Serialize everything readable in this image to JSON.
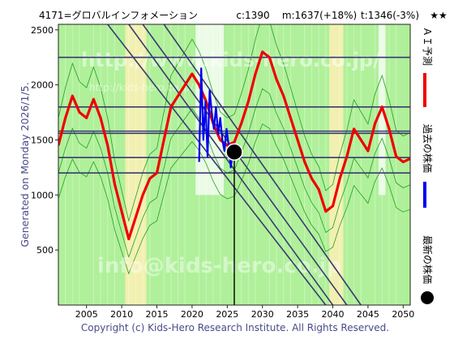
{
  "header": {
    "ticker": "4171=グロバルインフォメーション",
    "current": "c:1390",
    "mean": "m:1637(+18%)",
    "target": "t:1346(-3%)",
    "stars": "★★"
  },
  "side_label": "Generated on Monday 2026/1/5.",
  "watermark_top": "http://www.kids-hero.co.jp/",
  "watermark_mid": "http://kids-hero.co.jp/...",
  "watermark_bottom": "info@kids-hero.co.jp",
  "footer": "Copyright (c) Kids-Hero Research Institute. All Rights Reserved.",
  "legend": {
    "ai_forecast": "ＡＩ予測",
    "past_price": "過去の株価",
    "latest_price": "最新の株価"
  },
  "colors": {
    "forecast": "#ee0000",
    "past": "#0000ee",
    "band_green": "#b0f09a",
    "band_yellow": "#f2f0b0",
    "band_white": "#ffffff",
    "thin_green": "#20a020",
    "lines": "#3a3a72"
  },
  "chart_data": {
    "type": "line",
    "xlim": [
      2001,
      2051
    ],
    "ylim": [
      0,
      2550
    ],
    "x_ticks": [
      2005,
      2010,
      2015,
      2020,
      2025,
      2030,
      2035,
      2040,
      2045,
      2050
    ],
    "y_ticks": [
      500,
      1000,
      1500,
      2000,
      2500
    ],
    "horizontal_lines": [
      2250,
      1800,
      1580,
      1560,
      1340,
      1200
    ],
    "diagonal_lines": [
      {
        "from": [
          2008,
          2550
        ],
        "to": [
          2039,
          0
        ]
      },
      {
        "from": [
          2011,
          2550
        ],
        "to": [
          2040,
          0
        ]
      },
      {
        "from": [
          2013,
          2550
        ],
        "to": [
          2042,
          0
        ]
      },
      {
        "from": [
          2016,
          2550
        ],
        "to": [
          2044,
          0
        ]
      }
    ],
    "latest_marker": {
      "x": 2026,
      "y": 1390
    },
    "series": [
      {
        "name": "ＡＩ予測",
        "x": [
          2001,
          2002,
          2003,
          2004,
          2005,
          2006,
          2007,
          2008,
          2009,
          2010,
          2011,
          2012,
          2013,
          2014,
          2015,
          2016,
          2017,
          2018,
          2019,
          2020,
          2021,
          2022,
          2023,
          2024,
          2025,
          2026,
          2027,
          2028,
          2029,
          2030,
          2031,
          2032,
          2033,
          2034,
          2035,
          2036,
          2037,
          2038,
          2039,
          2040,
          2041,
          2042,
          2043,
          2044,
          2045,
          2046,
          2047,
          2048,
          2049,
          2050,
          2051
        ],
        "y": [
          1450,
          1700,
          1900,
          1750,
          1700,
          1870,
          1700,
          1450,
          1100,
          850,
          600,
          800,
          1000,
          1150,
          1200,
          1500,
          1800,
          1900,
          2000,
          2100,
          2000,
          1850,
          1650,
          1500,
          1450,
          1480,
          1650,
          1850,
          2100,
          2300,
          2250,
          2050,
          1900,
          1700,
          1500,
          1300,
          1150,
          1050,
          850,
          900,
          1150,
          1350,
          1600,
          1500,
          1400,
          1650,
          1800,
          1600,
          1350,
          1300,
          1330
        ]
      },
      {
        "name": "過去の株価",
        "x": [
          2021.0,
          2021.3,
          2021.6,
          2021.9,
          2022.2,
          2022.5,
          2022.8,
          2023.1,
          2023.4,
          2023.7,
          2024.0,
          2024.3,
          2024.6,
          2024.9,
          2025.2,
          2025.5,
          2025.8,
          2026.0
        ],
        "y": [
          1300,
          2150,
          1500,
          1850,
          1350,
          1950,
          1750,
          1600,
          1800,
          1550,
          1700,
          1500,
          1400,
          1600,
          1450,
          1250,
          1400,
          1390
        ]
      }
    ]
  }
}
